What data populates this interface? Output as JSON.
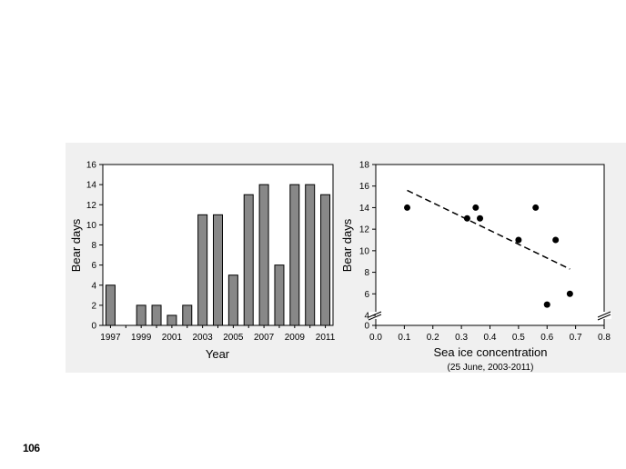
{
  "page_number": "106",
  "chart_data": [
    {
      "type": "bar",
      "title": "",
      "xlabel": "Year",
      "ylabel": "Bear days",
      "categories": [
        "1997",
        "1998",
        "1999",
        "2000",
        "2001",
        "2002",
        "2003",
        "2004",
        "2005",
        "2006",
        "2007",
        "2008",
        "2009",
        "2010",
        "2011"
      ],
      "values": [
        4,
        0,
        2,
        2,
        1,
        2,
        11,
        11,
        5,
        13,
        14,
        6,
        14,
        14,
        13
      ],
      "x_tick_labels": [
        "1997",
        "1999",
        "2001",
        "2003",
        "2005",
        "2007",
        "2009",
        "2011"
      ],
      "ylim": [
        0,
        16
      ],
      "y_ticks": [
        "0",
        "2",
        "4",
        "6",
        "8",
        "10",
        "12",
        "14",
        "16"
      ],
      "bar_color": "#888888",
      "grid": false
    },
    {
      "type": "scatter",
      "title": "",
      "xlabel": "Sea ice concentration",
      "xlabel_sub": "(25 June, 2003-2011)",
      "ylabel": "Bear days",
      "points": [
        {
          "x": 0.11,
          "y": 14
        },
        {
          "x": 0.32,
          "y": 13
        },
        {
          "x": 0.35,
          "y": 14
        },
        {
          "x": 0.365,
          "y": 13
        },
        {
          "x": 0.5,
          "y": 11
        },
        {
          "x": 0.56,
          "y": 14
        },
        {
          "x": 0.6,
          "y": 5
        },
        {
          "x": 0.63,
          "y": 11
        },
        {
          "x": 0.68,
          "y": 6
        }
      ],
      "trend_line": {
        "style": "dashed",
        "x": [
          0.11,
          0.68
        ],
        "y": [
          15.6,
          8.3
        ]
      },
      "xlim": [
        0.0,
        0.8
      ],
      "ylim": [
        4,
        18
      ],
      "y_axis_break": true,
      "x_ticks": [
        "0.0",
        "0.1",
        "0.2",
        "0.3",
        "0.4",
        "0.5",
        "0.6",
        "0.7",
        "0.8"
      ],
      "y_ticks": [
        "0",
        "4",
        "6",
        "8",
        "10",
        "12",
        "14",
        "16",
        "18"
      ],
      "point_color": "#000000",
      "grid": false
    }
  ]
}
